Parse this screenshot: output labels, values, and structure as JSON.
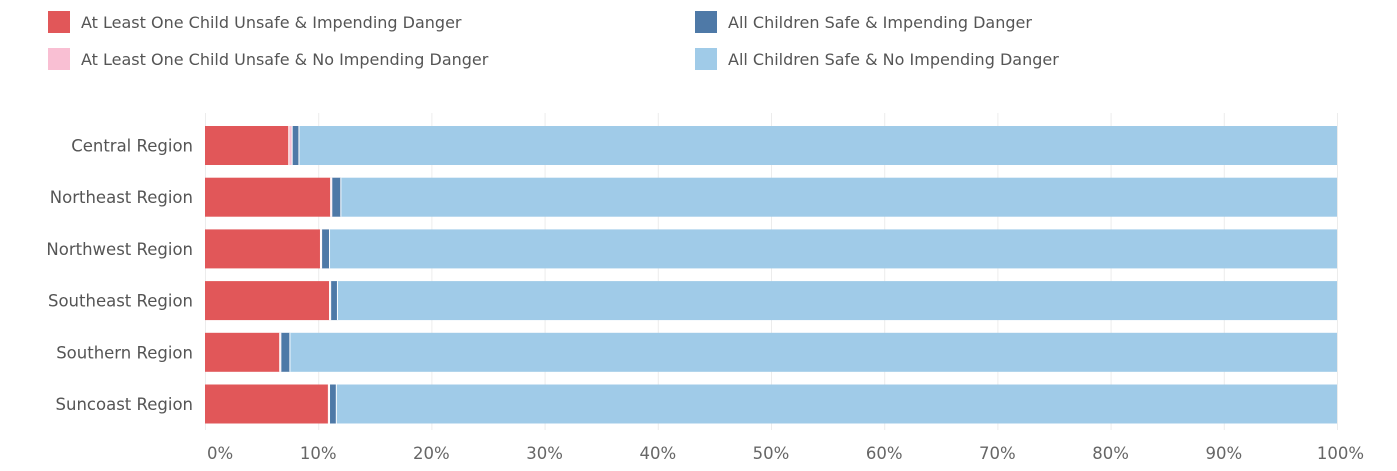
{
  "legend": {
    "items": [
      {
        "key": "unsafe_danger",
        "label": "At Least One Child Unsafe & Impending Danger",
        "color": "#e15759"
      },
      {
        "key": "safe_danger",
        "label": "All Children Safe & Impending Danger",
        "color": "#4e79a7"
      },
      {
        "key": "unsafe_nodanger",
        "label": "At Least One Child Unsafe & No Impending Danger",
        "color": "#f9bfd3"
      },
      {
        "key": "safe_nodanger",
        "label": "All Children Safe & No Impending Danger",
        "color": "#a0cbe8"
      }
    ]
  },
  "chart_data": {
    "type": "bar",
    "orientation": "horizontal",
    "stacked": true,
    "normalized": true,
    "categories": [
      "Central Region",
      "Northeast Region",
      "Northwest Region",
      "Southeast Region",
      "Southern Region",
      "Suncoast Region"
    ],
    "series": [
      {
        "name": "At Least One Child Unsafe & Impending Danger",
        "color": "#e15759",
        "values": [
          7.4,
          11.1,
          10.2,
          11.0,
          6.6,
          10.9
        ]
      },
      {
        "name": "At Least One Child Unsafe & No Impending Danger",
        "color": "#f9bfd3",
        "values": [
          0.3,
          0.1,
          0.1,
          0.1,
          0.1,
          0.1
        ]
      },
      {
        "name": "All Children Safe & Impending Danger",
        "color": "#4e79a7",
        "values": [
          0.6,
          0.8,
          0.7,
          0.6,
          0.8,
          0.6
        ]
      },
      {
        "name": "All Children Safe & No Impending Danger",
        "color": "#a0cbe8",
        "values": [
          91.7,
          88.0,
          89.0,
          88.3,
          92.5,
          88.4
        ]
      }
    ],
    "xlim": [
      0,
      100
    ],
    "x_ticks": [
      0,
      10,
      20,
      30,
      40,
      50,
      60,
      70,
      80,
      90,
      100
    ],
    "x_tick_labels": [
      "0%",
      "10%",
      "20%",
      "30%",
      "40%",
      "50%",
      "60%",
      "70%",
      "80%",
      "90%",
      "100%"
    ],
    "grid": true,
    "legend_position": "top"
  }
}
